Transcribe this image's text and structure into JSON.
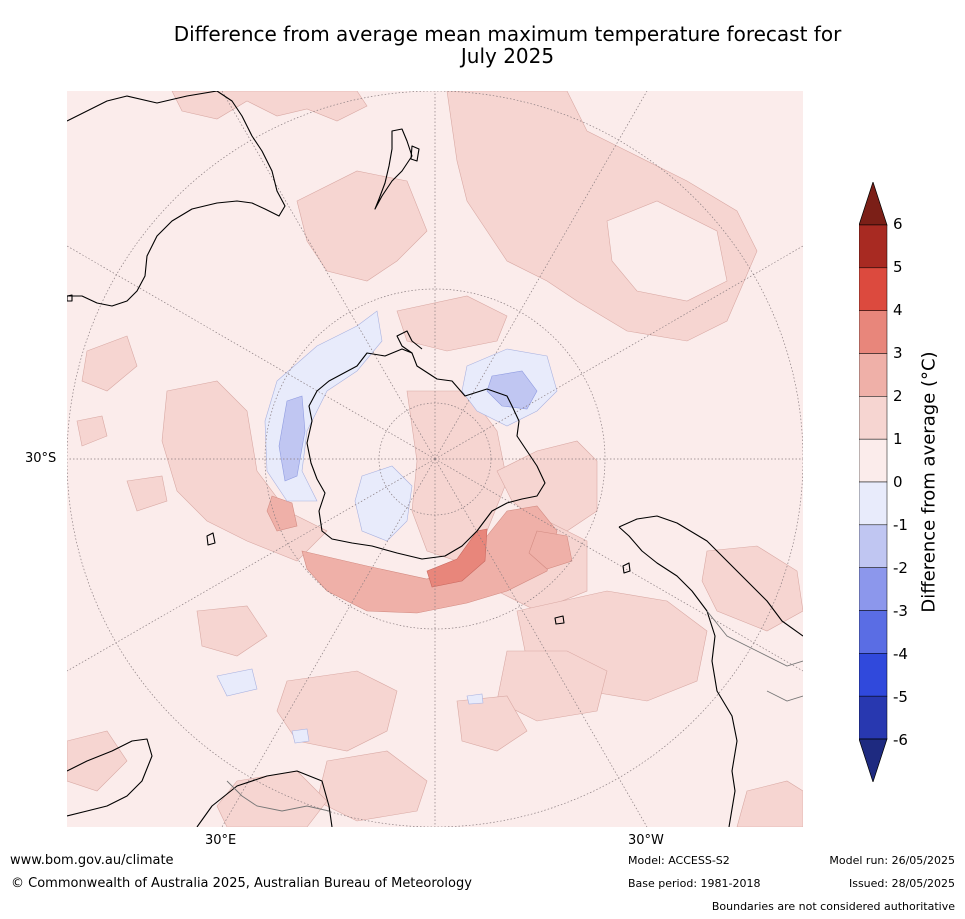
{
  "title": {
    "line1": "Difference from average mean maximum temperature forecast for",
    "line2": "July 2025"
  },
  "map": {
    "projection": "south polar stereographic",
    "lat_label_left": "30°S",
    "lon_label_bottom_left": "30°E",
    "lon_label_bottom_right": "30°W"
  },
  "colorbar": {
    "title": "Difference from average (°C)",
    "ticks": [
      "6",
      "5",
      "4",
      "3",
      "2",
      "1",
      "0",
      "-1",
      "-2",
      "-3",
      "-4",
      "-5",
      "-6"
    ],
    "bins": [
      {
        "range": "> 6",
        "color": "#7b1f17"
      },
      {
        "range": "5 to 6",
        "color": "#a82a22"
      },
      {
        "range": "4 to 5",
        "color": "#dc4a3e"
      },
      {
        "range": "3 to 4",
        "color": "#e8867b"
      },
      {
        "range": "2 to 3",
        "color": "#efb0a8"
      },
      {
        "range": "1 to 2",
        "color": "#f6d5d1"
      },
      {
        "range": "0 to 1",
        "color": "#fbeceb"
      },
      {
        "range": "-1 to 0",
        "color": "#e8ebfb"
      },
      {
        "range": "-2 to -1",
        "color": "#c0c6f2"
      },
      {
        "range": "-3 to -2",
        "color": "#8c97ec"
      },
      {
        "range": "-4 to -3",
        "color": "#5a6de4"
      },
      {
        "range": "-5 to -4",
        "color": "#3049dc"
      },
      {
        "range": "-6 to -5",
        "color": "#2838b0"
      },
      {
        "range": "< -6",
        "color": "#1e2a80"
      }
    ]
  },
  "footer": {
    "website": "www.bom.gov.au/climate",
    "copyright": "© Commonwealth of Australia 2025, Australian Bureau of Meteorology",
    "model": "Model: ACCESS-S2",
    "base_period": "Base period: 1981-2018",
    "model_run": "Model run: 26/05/2025",
    "issued": "Issued: 28/05/2025",
    "disclaimer": "Boundaries are not considered authoritative"
  }
}
